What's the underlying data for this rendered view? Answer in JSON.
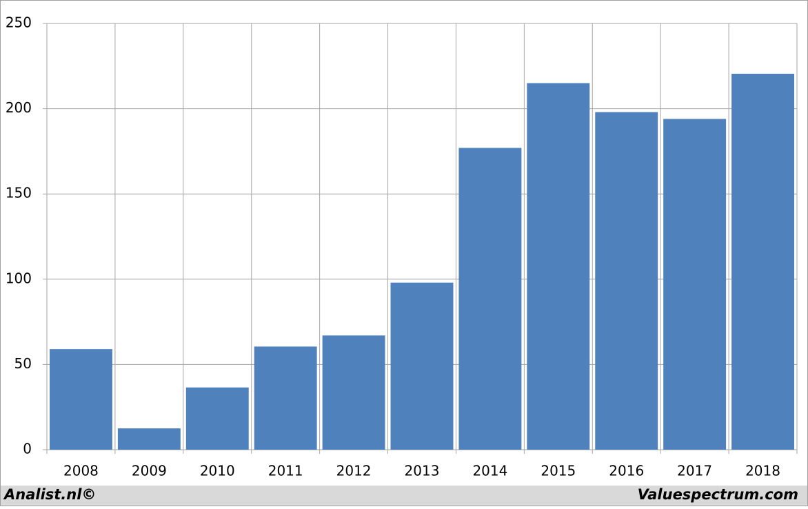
{
  "chart_data": {
    "type": "bar",
    "categories": [
      "2008",
      "2009",
      "2010",
      "2011",
      "2012",
      "2013",
      "2014",
      "2015",
      "2016",
      "2017",
      "2018"
    ],
    "values": [
      59,
      12.5,
      36.5,
      60.5,
      67,
      98,
      177,
      215,
      198,
      194,
      220.5
    ],
    "color": "#4f81bd",
    "ylim": [
      0,
      250
    ],
    "yticks": [
      0,
      50,
      100,
      150,
      200,
      250
    ],
    "grid": true,
    "footer_left": "Analist.nl©",
    "footer_right": "Valuespectrum.com"
  }
}
